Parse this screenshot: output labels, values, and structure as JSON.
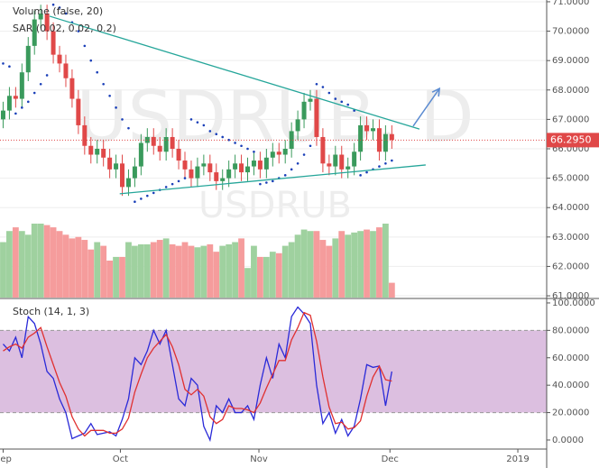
{
  "chart_data": [
    {
      "type": "candlestick",
      "watermark": "USDRUB, D",
      "subtitle": "USDRUB",
      "indicators": [
        "Volume (false, 20)",
        "SAR (0.02, 0.02, 0.2)"
      ],
      "xlim": [
        -0.5,
        86.7
      ],
      "ylim": [
        60.94,
        71.06
      ],
      "yticks": [
        {
          "value": 61,
          "label": "61.0000"
        },
        {
          "value": 62,
          "label": "62.0000"
        },
        {
          "value": 63,
          "label": "63.0000"
        },
        {
          "value": 64,
          "label": "64.0000"
        },
        {
          "value": 65,
          "label": "65.0000"
        },
        {
          "value": 66,
          "label": "66.0000"
        },
        {
          "value": 67,
          "label": "67.0000"
        },
        {
          "value": 68,
          "label": "68.0000"
        },
        {
          "value": 69,
          "label": "69.0000"
        },
        {
          "value": 70,
          "label": "70.0000"
        },
        {
          "value": 71,
          "label": "71.0000"
        }
      ],
      "grid": true,
      "up_color": "#3a9a5c",
      "down_color": "#e04848",
      "open": [
        67.0,
        67.3,
        67.8,
        67.7,
        68.6,
        69.5,
        70.4,
        70.6,
        70.0,
        69.2,
        68.9,
        68.4,
        67.7,
        66.8,
        66.1,
        65.8,
        66.0,
        65.7,
        65.3,
        65.5,
        64.7,
        65.0,
        65.4,
        66.2,
        66.4,
        66.1,
        65.9,
        66.4,
        66.0,
        65.6,
        65.3,
        65.0,
        65.4,
        65.5,
        65.2,
        64.9,
        65.0,
        65.3,
        65.5,
        65.2,
        65.4,
        65.6,
        65.3,
        65.7,
        65.9,
        65.8,
        66.0,
        66.6,
        67.0,
        67.6,
        67.7,
        66.4,
        65.5,
        65.4,
        65.8,
        65.3,
        65.4,
        65.9,
        66.8,
        66.6,
        66.7,
        65.9,
        66.5
      ],
      "high": [
        67.6,
        68.1,
        68.1,
        68.9,
        69.8,
        70.7,
        70.9,
        70.9,
        70.3,
        69.5,
        69.2,
        68.7,
        68.0,
        67.1,
        66.4,
        66.3,
        66.3,
        66.0,
        65.8,
        65.8,
        65.3,
        65.7,
        66.5,
        66.7,
        66.7,
        66.4,
        66.7,
        66.7,
        66.3,
        65.9,
        65.6,
        65.7,
        65.8,
        65.8,
        65.5,
        65.3,
        65.6,
        65.8,
        65.8,
        65.7,
        65.9,
        65.9,
        66.0,
        66.2,
        66.2,
        66.3,
        66.9,
        67.3,
        67.9,
        68.0,
        68.0,
        66.7,
        65.8,
        66.1,
        66.1,
        65.7,
        66.2,
        67.1,
        67.1,
        67.0,
        67.0,
        66.8,
        66.8
      ],
      "low": [
        66.7,
        67.0,
        67.4,
        67.4,
        68.3,
        69.2,
        70.1,
        69.7,
        68.9,
        68.6,
        68.1,
        67.4,
        66.5,
        65.8,
        65.5,
        65.5,
        65.4,
        65.0,
        65.0,
        64.4,
        64.4,
        64.7,
        65.1,
        65.9,
        65.8,
        65.6,
        65.6,
        65.7,
        65.3,
        65.0,
        64.7,
        64.7,
        65.1,
        64.9,
        64.6,
        64.6,
        64.7,
        65.0,
        64.9,
        64.9,
        65.1,
        65.0,
        65.0,
        65.4,
        65.5,
        65.5,
        65.7,
        66.3,
        66.7,
        67.3,
        66.1,
        65.2,
        65.1,
        65.1,
        65.0,
        65.0,
        65.1,
        65.6,
        66.3,
        66.3,
        65.6,
        65.6,
        66.0
      ],
      "close": [
        67.3,
        67.8,
        67.7,
        68.6,
        69.5,
        70.4,
        70.6,
        70.0,
        69.2,
        68.9,
        68.4,
        67.7,
        66.8,
        66.1,
        65.8,
        66.0,
        65.7,
        65.3,
        65.5,
        64.7,
        65.0,
        65.4,
        66.2,
        66.4,
        66.1,
        65.9,
        66.4,
        66.0,
        65.6,
        65.3,
        65.0,
        65.4,
        65.5,
        65.2,
        64.9,
        65.0,
        65.3,
        65.5,
        65.2,
        65.4,
        65.6,
        65.3,
        65.7,
        65.9,
        65.8,
        66.0,
        66.6,
        67.0,
        67.6,
        67.7,
        66.4,
        65.5,
        65.4,
        65.8,
        65.3,
        65.4,
        65.9,
        66.8,
        66.6,
        66.7,
        65.9,
        66.5,
        66.3
      ],
      "volume": [
        75,
        90,
        95,
        90,
        85,
        100,
        100,
        98,
        95,
        90,
        85,
        80,
        82,
        78,
        65,
        75,
        70,
        50,
        55,
        55,
        75,
        70,
        72,
        72,
        75,
        78,
        80,
        72,
        70,
        75,
        70,
        68,
        70,
        72,
        62,
        70,
        72,
        75,
        80,
        40,
        70,
        55,
        55,
        62,
        60,
        70,
        75,
        85,
        92,
        90,
        90,
        78,
        70,
        80,
        90,
        85,
        88,
        90,
        92,
        90,
        95,
        100,
        20
      ],
      "volume_lim": [
        0,
        100
      ],
      "volume_up_color": "#9fd19f",
      "volume_down_color": "#f59c9c",
      "sar": [
        68.9,
        68.8,
        67.2,
        67.4,
        67.6,
        67.9,
        68.2,
        68.5,
        70.9,
        70.8,
        70.6,
        70.3,
        70.0,
        69.5,
        69.0,
        68.6,
        68.2,
        67.8,
        67.4,
        67.0,
        66.7,
        64.2,
        64.3,
        64.4,
        64.5,
        64.6,
        64.7,
        64.8,
        64.9,
        65.0,
        67.0,
        66.9,
        66.8,
        66.6,
        66.5,
        66.4,
        66.3,
        66.2,
        66.1,
        66.0,
        65.9,
        64.8,
        64.85,
        64.9,
        65.0,
        65.1,
        65.3,
        65.5,
        65.8,
        66.1,
        68.2,
        68.1,
        67.9,
        67.7,
        67.6,
        67.5,
        67.3,
        65.1,
        65.2,
        65.3,
        65.4,
        65.5,
        65.6
      ],
      "sar_color": "#1a3fb8",
      "trendlines": [
        {
          "color": "#26a69a",
          "points": [
            [
              7.4,
              70.51
            ],
            [
              66.4,
              66.67
            ]
          ]
        },
        {
          "color": "#26a69a",
          "points": [
            [
              18.6,
              64.47
            ],
            [
              67.4,
              65.45
            ]
          ]
        }
      ],
      "arrow": {
        "color": "#5b8bd1",
        "points": [
          [
            65.4,
            66.77
          ],
          [
            69.6,
            68.05
          ]
        ]
      },
      "last_price": {
        "value": 66.295,
        "label": "66.2950"
      },
      "last_price_color": "#e04848"
    },
    {
      "type": "line",
      "title": "Stoch (14, 1, 3)",
      "xlim": [
        -0.5,
        86.7
      ],
      "ylim": [
        -6.6,
        102.6
      ],
      "yticks": [
        {
          "value": 0,
          "label": "0.0000"
        },
        {
          "value": 20,
          "label": "20.0000"
        },
        {
          "value": 40,
          "label": "40.0000"
        },
        {
          "value": 60,
          "label": "60.0000"
        },
        {
          "value": 80,
          "label": "80.0000"
        },
        {
          "value": 100,
          "label": "100.0000"
        }
      ],
      "xticks": [
        {
          "value": 0,
          "label": "Sep"
        },
        {
          "value": 18.7,
          "label": "Oct"
        },
        {
          "value": 40.8,
          "label": "Nov"
        },
        {
          "value": 61.7,
          "label": "Dec"
        },
        {
          "value": 82.1,
          "label": "2019"
        }
      ],
      "band": [
        20,
        80
      ],
      "band_color": "#dcbfe0",
      "series": [
        {
          "color": "#2a2ad8",
          "values": [
            70,
            65,
            75,
            60,
            90,
            85,
            70,
            50,
            45,
            30,
            20,
            1,
            3,
            5,
            12,
            4,
            5,
            6,
            3,
            15,
            30,
            60,
            55,
            65,
            80,
            70,
            80,
            55,
            30,
            25,
            45,
            40,
            10,
            0,
            25,
            20,
            30,
            20,
            20,
            25,
            15,
            40,
            60,
            45,
            70,
            60,
            90,
            97,
            92,
            85,
            40,
            12,
            20,
            5,
            15,
            3,
            10,
            30,
            55,
            53,
            54,
            25,
            50
          ]
        },
        {
          "color": "#e03030",
          "values": [
            65,
            68,
            70,
            67,
            75,
            78,
            82,
            68,
            55,
            42,
            32,
            17,
            8,
            3,
            7,
            7,
            7,
            5,
            5,
            8,
            16,
            35,
            48,
            60,
            67,
            72,
            77,
            68,
            55,
            37,
            33,
            37,
            32,
            17,
            12,
            15,
            25,
            23,
            23,
            22,
            20,
            27,
            38,
            48,
            58,
            58,
            73,
            82,
            93,
            91,
            72,
            46,
            24,
            12,
            13,
            8,
            9,
            14,
            32,
            46,
            54,
            44,
            43
          ]
        }
      ]
    }
  ]
}
